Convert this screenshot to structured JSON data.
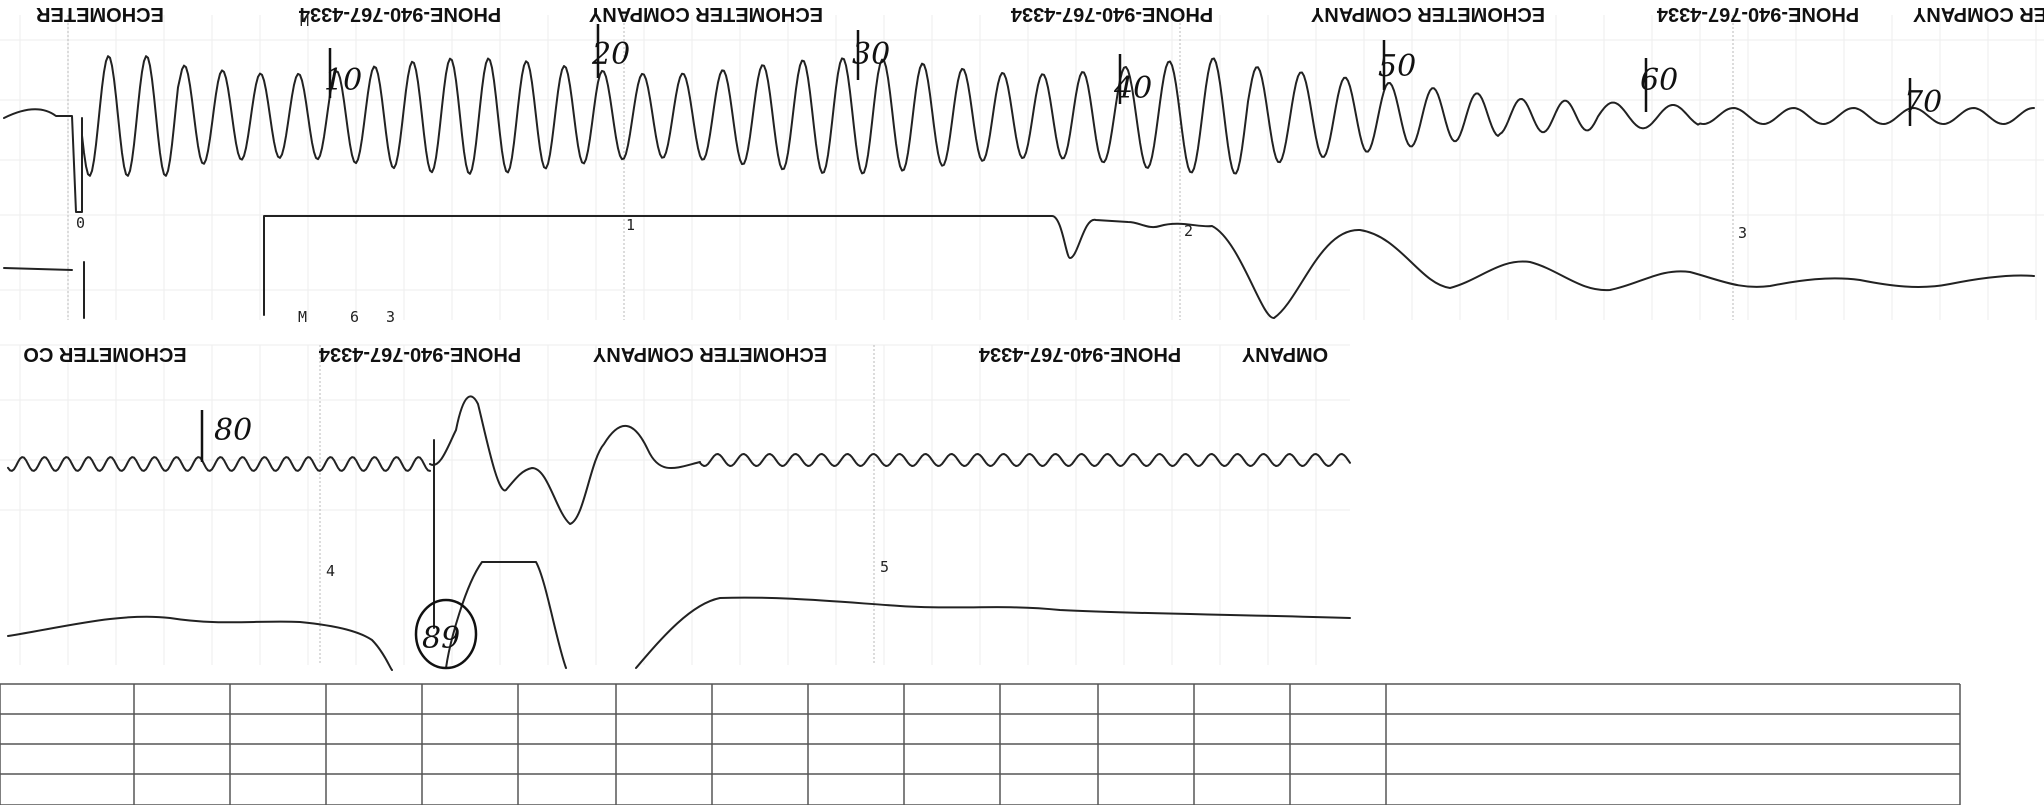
{
  "header_text": {
    "company": "ECHOMETER COMPANY",
    "phone": "PHONE-940-767-4334",
    "fragment_co": "ECHOMETER CO",
    "fragment_er": "ER COMPANY",
    "fragment_ompany": "OMPANY",
    "fragment_echometer": "ECHOMETER"
  },
  "second_markers": [
    "0",
    "1",
    "2",
    "3",
    "4",
    "5"
  ],
  "handwritten_labels": [
    "10",
    "20",
    "30",
    "40",
    "50",
    "60",
    "70",
    "80",
    "89"
  ],
  "small_marks": {
    "m_top": "M",
    "m_bottom": "M",
    "num_6": "6",
    "num_3": "3"
  },
  "colors": {
    "paper": "#ffffff",
    "ink": "#222222",
    "grid": "#b8b8b8"
  }
}
